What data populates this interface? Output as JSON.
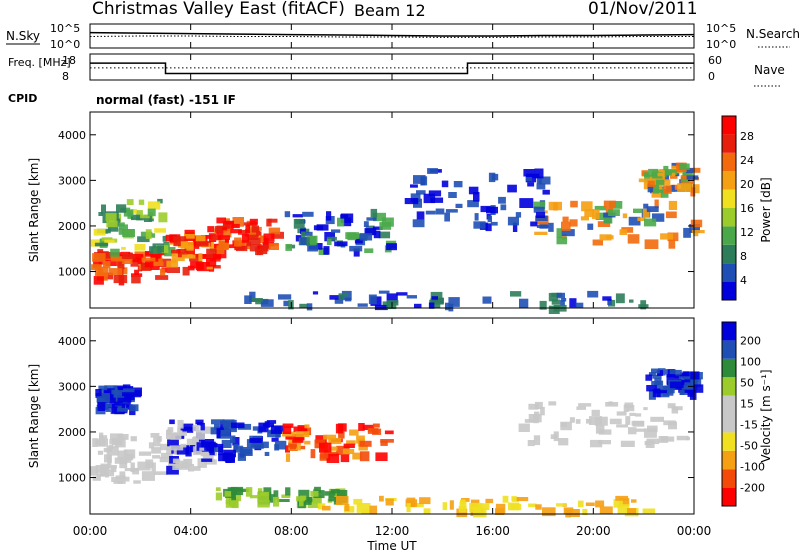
{
  "header": {
    "title": "Christmas Valley East (fitACF)",
    "beam": "Beam 12",
    "date": "01/Nov/2011"
  },
  "cpid_label": "CPID",
  "cpid_text": "normal (fast) -151 IF",
  "chart_data": [
    {
      "type": "line",
      "name": "noise-panel",
      "ylabel_left": "N.Sky",
      "ylabel_right": "N.Search",
      "left_ticks": [
        "10^5",
        "10^0"
      ],
      "right_ticks": [
        "10^5",
        "10^0"
      ],
      "x": [
        0,
        2,
        4,
        6,
        8,
        10,
        12,
        14,
        16,
        18,
        20,
        22,
        24
      ],
      "series": [
        {
          "values": [
            3.2,
            3.1,
            3.0,
            2.9,
            2.8,
            2.7,
            2.6,
            2.5,
            2.5,
            2.6,
            2.6,
            2.7,
            2.8
          ]
        },
        {
          "values": [
            2.4,
            2.5,
            2.5,
            2.4,
            2.4,
            2.3,
            2.3,
            2.2,
            2.2,
            2.3,
            2.3,
            2.4,
            2.4
          ]
        }
      ],
      "ylim": [
        0,
        5
      ]
    },
    {
      "type": "line",
      "name": "frequency-panel",
      "ylabel_left": "Freq. [MHz]",
      "ylabel_right": "Nave",
      "left_ticks": [
        "18",
        "8"
      ],
      "right_ticks": [
        "60",
        "0"
      ],
      "x": [
        0,
        3,
        3,
        15,
        15,
        24
      ],
      "values": [
        14.5,
        14.5,
        10.5,
        10.5,
        14.5,
        14.5
      ],
      "nave_level": 28,
      "ylim": [
        8,
        18
      ]
    },
    {
      "type": "heatmap",
      "name": "power-panel",
      "ylabel": "Slant Range [km]",
      "yticks": [
        1000,
        2000,
        3000,
        4000
      ],
      "ylim": [
        200,
        4500
      ],
      "xlim": [
        0,
        24
      ],
      "colorbar_label": "Power [dB]",
      "colorbar_ticks": [
        "28",
        "24",
        "20",
        "16",
        "12",
        "8",
        "4"
      ],
      "colorbar_range": [
        0,
        30
      ],
      "colors": [
        "#0000dd",
        "#1f4fb4",
        "#2e7d5a",
        "#4aa84a",
        "#9ccc2c",
        "#f0e020",
        "#f5a012",
        "#f36a0c",
        "#e81e0c",
        "#ff0000"
      ]
    },
    {
      "type": "heatmap",
      "name": "velocity-panel",
      "ylabel": "Slant Range [km]",
      "yticks": [
        1000,
        2000,
        3000,
        4000
      ],
      "ylim": [
        200,
        4500
      ],
      "xlim": [
        0,
        24
      ],
      "colorbar_label": "Velocity [m s⁻¹]",
      "colorbar_ticks": [
        "200",
        "100",
        "50",
        "15",
        "-15",
        "-50",
        "-100",
        "-200"
      ],
      "colorbar_range": [
        -250,
        250
      ],
      "colors": [
        "#ff0000",
        "#f34a0a",
        "#f5a012",
        "#f0e020",
        "#c8c8c8",
        "#c8c8c8",
        "#9ccc2c",
        "#2e8b3a",
        "#1f4fb4",
        "#0000dd"
      ]
    }
  ],
  "xaxis": {
    "ticks": [
      "00:00",
      "04:00",
      "08:00",
      "12:00",
      "16:00",
      "20:00",
      "00:00"
    ],
    "label": "Time UT"
  }
}
